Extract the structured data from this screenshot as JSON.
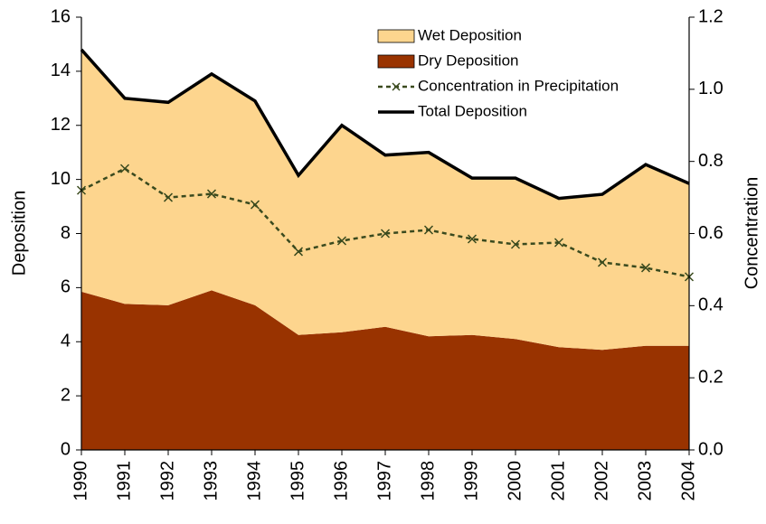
{
  "chart_data": {
    "type": "area",
    "categories": [
      "1990",
      "1991",
      "1992",
      "1993",
      "1994",
      "1995",
      "1996",
      "1997",
      "1998",
      "1999",
      "2000",
      "2001",
      "2002",
      "2003",
      "2004"
    ],
    "y_label": "Deposition",
    "y2_label": "Concentration",
    "ylim": [
      0,
      16
    ],
    "yticks": [
      0,
      2,
      4,
      6,
      8,
      10,
      12,
      14,
      16
    ],
    "y2lim": [
      0,
      1.2
    ],
    "y2ticks": [
      {
        "value": 0,
        "label": "0.0"
      },
      0.2,
      0.4,
      0.6,
      0.8,
      {
        "value": 1,
        "label": "1.0"
      },
      1.2
    ],
    "series": [
      {
        "name": "Wet Deposition",
        "kind": "area",
        "color": "#fdd58e",
        "values": [
          8.95,
          7.6,
          7.5,
          8.0,
          7.55,
          5.9,
          7.65,
          6.35,
          6.8,
          5.8,
          5.95,
          5.5,
          5.75,
          6.7,
          6.0
        ]
      },
      {
        "name": "Dry Deposition",
        "kind": "area",
        "color": "#993300",
        "values": [
          5.85,
          5.4,
          5.35,
          5.9,
          5.35,
          4.25,
          4.35,
          4.55,
          4.2,
          4.25,
          4.1,
          3.8,
          3.7,
          3.85,
          3.85
        ]
      },
      {
        "name": "Concentration in Precipitation",
        "kind": "line",
        "axis": "y2",
        "color": "#3a4a1e",
        "dashed": true,
        "marker": "x",
        "values": [
          0.72,
          0.78,
          0.7,
          0.71,
          0.68,
          0.55,
          0.58,
          0.6,
          0.61,
          0.585,
          0.57,
          0.575,
          0.52,
          0.505,
          0.48
        ]
      },
      {
        "name": "Total Deposition",
        "kind": "line",
        "color": "#000000",
        "values": [
          14.8,
          13.0,
          12.85,
          13.9,
          12.9,
          10.15,
          12.0,
          10.9,
          11.0,
          10.05,
          10.05,
          9.3,
          9.45,
          10.55,
          9.85
        ]
      }
    ]
  }
}
